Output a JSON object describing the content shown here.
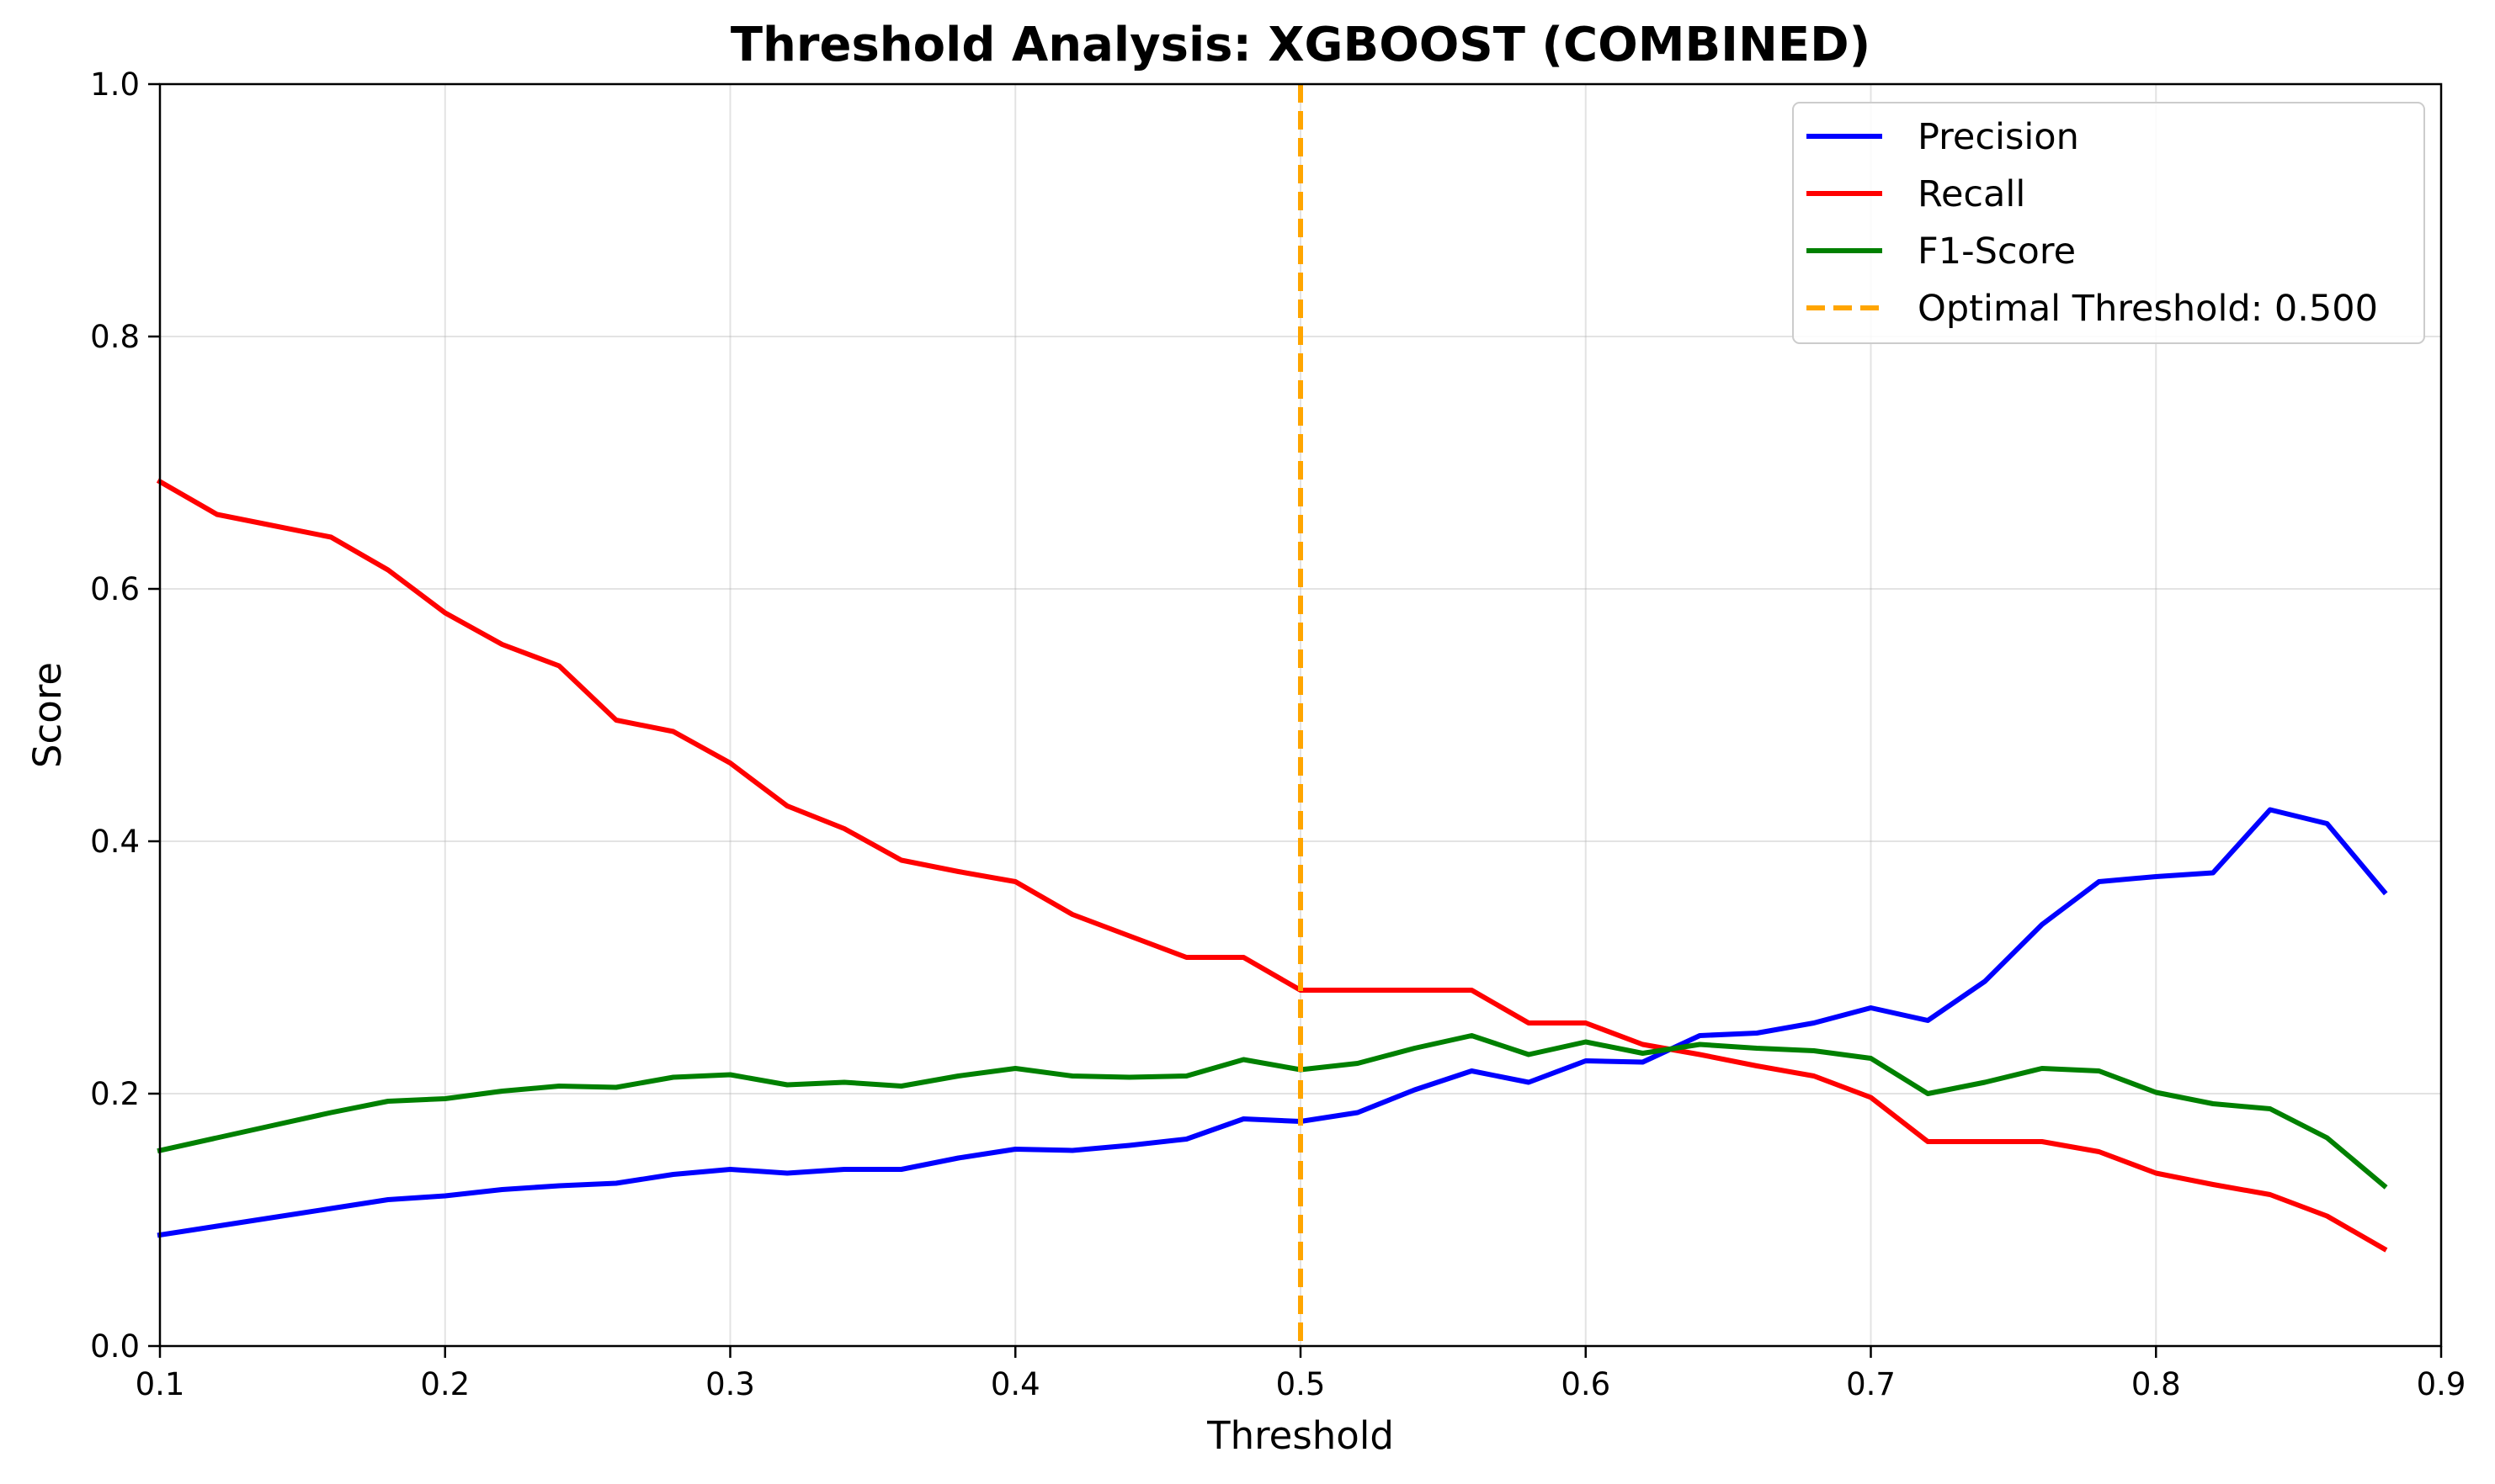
{
  "chart_data": {
    "type": "line",
    "title": "Threshold Analysis: XGBOOST (COMBINED)",
    "xlabel": "Threshold",
    "ylabel": "Score",
    "xlim": [
      0.1,
      0.9
    ],
    "ylim": [
      0.0,
      1.0
    ],
    "xticks": [
      "0.1",
      "0.2",
      "0.3",
      "0.4",
      "0.5",
      "0.6",
      "0.7",
      "0.8",
      "0.9"
    ],
    "yticks": [
      "0.0",
      "0.2",
      "0.4",
      "0.6",
      "0.8",
      "1.0"
    ],
    "grid": true,
    "legend_position": "top-right",
    "x": [
      0.1,
      0.12,
      0.14,
      0.16,
      0.18,
      0.2,
      0.22,
      0.24,
      0.26,
      0.28,
      0.3,
      0.32,
      0.34,
      0.36,
      0.38,
      0.4,
      0.42,
      0.44,
      0.46,
      0.48,
      0.5,
      0.52,
      0.54,
      0.56,
      0.58,
      0.6,
      0.62,
      0.64,
      0.66,
      0.68,
      0.7,
      0.72,
      0.74,
      0.76,
      0.78,
      0.8,
      0.82,
      0.84,
      0.86,
      0.88
    ],
    "series": [
      {
        "name": "Precision",
        "color": "#0000ff",
        "values": [
          0.088,
          0.095,
          0.102,
          0.109,
          0.116,
          0.119,
          0.124,
          0.127,
          0.129,
          0.136,
          0.14,
          0.137,
          0.14,
          0.14,
          0.149,
          0.156,
          0.155,
          0.159,
          0.164,
          0.18,
          0.178,
          0.185,
          0.203,
          0.218,
          0.209,
          0.226,
          0.225,
          0.246,
          0.248,
          0.256,
          0.268,
          0.258,
          0.289,
          0.334,
          0.368,
          0.372,
          0.375,
          0.425,
          0.414,
          0.36
        ]
      },
      {
        "name": "Recall",
        "color": "#ff0000",
        "values": [
          0.685,
          0.659,
          0.65,
          0.641,
          0.615,
          0.581,
          0.556,
          0.539,
          0.496,
          0.487,
          0.462,
          0.428,
          0.41,
          0.385,
          0.376,
          0.368,
          0.342,
          0.325,
          0.308,
          0.308,
          0.282,
          0.282,
          0.282,
          0.282,
          0.256,
          0.256,
          0.239,
          0.231,
          0.222,
          0.214,
          0.197,
          0.162,
          0.162,
          0.162,
          0.154,
          0.137,
          0.128,
          0.12,
          0.103,
          0.077
        ]
      },
      {
        "name": "F1-Score",
        "color": "#008000",
        "values": [
          0.155,
          0.165,
          0.175,
          0.185,
          0.194,
          0.196,
          0.202,
          0.206,
          0.205,
          0.213,
          0.215,
          0.207,
          0.209,
          0.206,
          0.214,
          0.22,
          0.214,
          0.213,
          0.214,
          0.227,
          0.219,
          0.224,
          0.236,
          0.246,
          0.231,
          0.241,
          0.232,
          0.239,
          0.236,
          0.234,
          0.228,
          0.2,
          0.209,
          0.22,
          0.218,
          0.201,
          0.192,
          0.188,
          0.165,
          0.127
        ]
      }
    ],
    "optimal_threshold": {
      "label": "Optimal Threshold: 0.500",
      "x": 0.5,
      "color": "#ffa500",
      "style": "dashed"
    }
  }
}
